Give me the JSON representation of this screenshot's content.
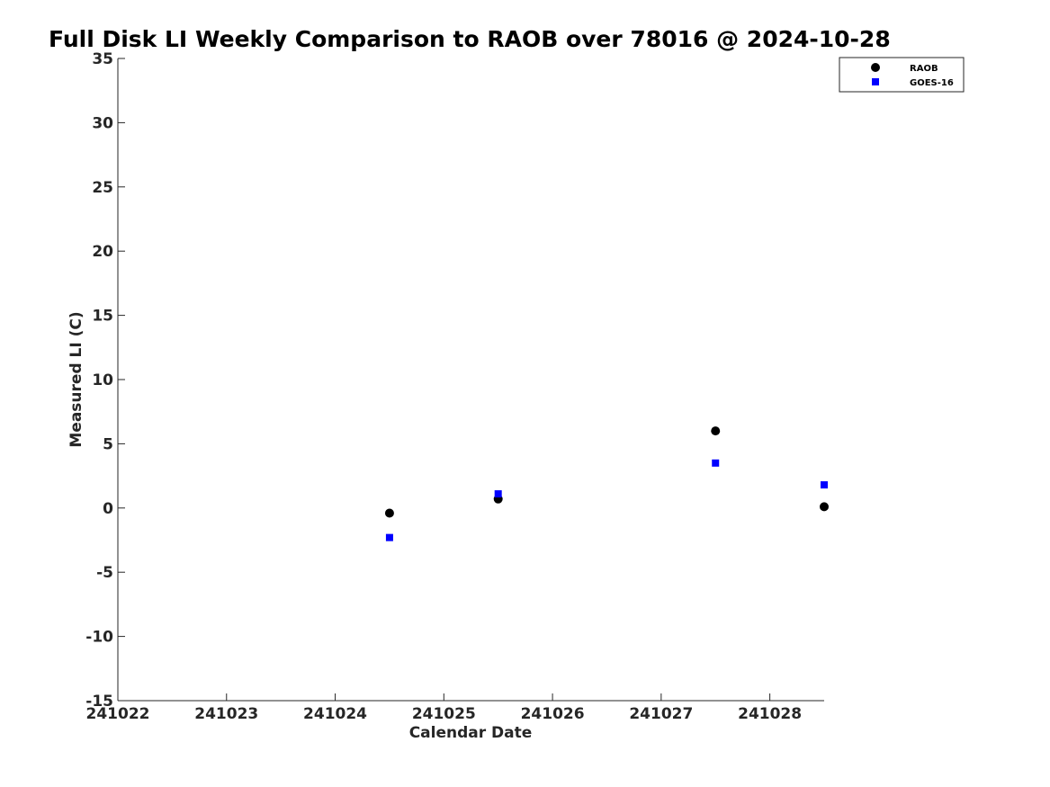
{
  "chart_data": {
    "type": "scatter",
    "title": "Full Disk LI Weekly Comparison to RAOB over 78016 @ 2024-10-28",
    "xlabel": "Calendar Date",
    "ylabel": "Measured LI (C)",
    "x_ticks": [
      "241022",
      "241023",
      "241024",
      "241025",
      "241026",
      "241027",
      "241028"
    ],
    "y_ticks": [
      35,
      30,
      25,
      20,
      15,
      10,
      5,
      0,
      -5,
      -10,
      -15
    ],
    "xlim": [
      "241022",
      "241028.5"
    ],
    "ylim": [
      -15,
      35
    ],
    "grid": false,
    "legend_position": "top-right",
    "series": [
      {
        "name": "RAOB",
        "marker": "circle",
        "color": "#000000",
        "points": [
          {
            "x": "241024.5",
            "y": -0.4
          },
          {
            "x": "241025.5",
            "y": 0.7
          },
          {
            "x": "241027.5",
            "y": 6.0
          },
          {
            "x": "241028.5",
            "y": 0.1
          }
        ]
      },
      {
        "name": "GOES-16",
        "marker": "square",
        "color": "#0000ff",
        "points": [
          {
            "x": "241024.5",
            "y": -2.3
          },
          {
            "x": "241025.5",
            "y": 1.1
          },
          {
            "x": "241027.5",
            "y": 3.5
          },
          {
            "x": "241028.5",
            "y": 1.8
          }
        ]
      }
    ]
  }
}
